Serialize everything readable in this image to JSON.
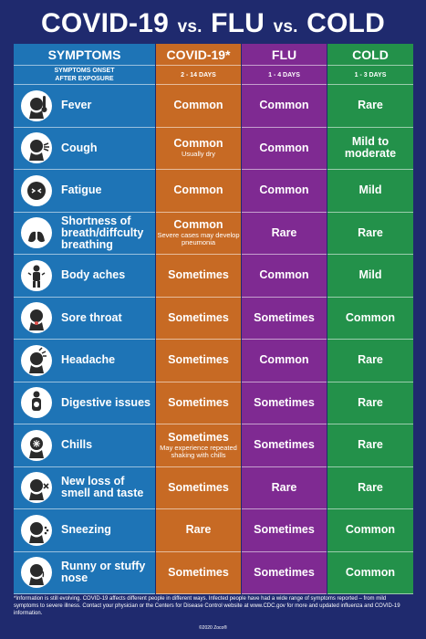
{
  "title": {
    "p1": "COVID-19",
    "vs1": "vs.",
    "p2": "FLU",
    "vs2": "vs.",
    "p3": "COLD"
  },
  "headers": [
    "SYMPTOMS",
    "COVID-19*",
    "FLU",
    "COLD"
  ],
  "onset": {
    "label": "SYMPTOMS ONSET AFTER EXPOSURE",
    "covid": "2 - 14 DAYS",
    "flu": "1 - 4 DAYS",
    "cold": "1 - 3 DAYS"
  },
  "colors": {
    "background": "#1f2a6e",
    "symptoms": "#1e74b6",
    "covid": "#c76a24",
    "flu": "#7f2a92",
    "cold": "#23914a"
  },
  "rows": [
    {
      "symptom": "Fever",
      "icon": "thermometer-head-icon",
      "covid": "Common",
      "covid_note": "",
      "flu": "Common",
      "cold": "Rare"
    },
    {
      "symptom": "Cough",
      "icon": "cough-head-icon",
      "covid": "Common",
      "covid_note": "Usually dry",
      "flu": "Common",
      "cold": "Mild to moderate"
    },
    {
      "symptom": "Fatigue",
      "icon": "tired-head-icon",
      "covid": "Common",
      "covid_note": "",
      "flu": "Common",
      "cold": "Mild"
    },
    {
      "symptom": "Shortness of breath/diffculty breathing",
      "icon": "lungs-icon",
      "covid": "Common",
      "covid_note": "Severe cases may develop pneumonia",
      "flu": "Rare",
      "cold": "Rare"
    },
    {
      "symptom": "Body aches",
      "icon": "body-aches-icon",
      "covid": "Sometimes",
      "covid_note": "",
      "flu": "Common",
      "cold": "Mild"
    },
    {
      "symptom": "Sore throat",
      "icon": "sore-throat-icon",
      "covid": "Sometimes",
      "covid_note": "",
      "flu": "Sometimes",
      "cold": "Common"
    },
    {
      "symptom": "Headache",
      "icon": "headache-icon",
      "covid": "Sometimes",
      "covid_note": "",
      "flu": "Common",
      "cold": "Rare"
    },
    {
      "symptom": "Digestive issues",
      "icon": "digestive-icon",
      "covid": "Sometimes",
      "covid_note": "",
      "flu": "Sometimes",
      "cold": "Rare"
    },
    {
      "symptom": "Chills",
      "icon": "chills-icon",
      "covid": "Sometimes",
      "covid_note": "May experience repeated shaking with chills",
      "flu": "Sometimes",
      "cold": "Rare"
    },
    {
      "symptom": "New loss of smell and taste",
      "icon": "loss-smell-icon",
      "covid": "Sometimes",
      "covid_note": "",
      "flu": "Rare",
      "cold": "Rare"
    },
    {
      "symptom": "Sneezing",
      "icon": "sneezing-icon",
      "covid": "Rare",
      "covid_note": "",
      "flu": "Sometimes",
      "cold": "Common"
    },
    {
      "symptom": "Runny or stuffy nose",
      "icon": "runny-nose-icon",
      "covid": "Sometimes",
      "covid_note": "",
      "flu": "Sometimes",
      "cold": "Common"
    }
  ],
  "footer": "*Information is still evolving. COVID-19 affects different people in different ways. Infected people have had a wide range of symptoms reported – from mild symptoms to severe illness. Contact your physician or the Centers for Disease Control website at www.CDC.gov for more and updated influenza and COVID-19 information.",
  "copyright": "©2020 Zoco®"
}
